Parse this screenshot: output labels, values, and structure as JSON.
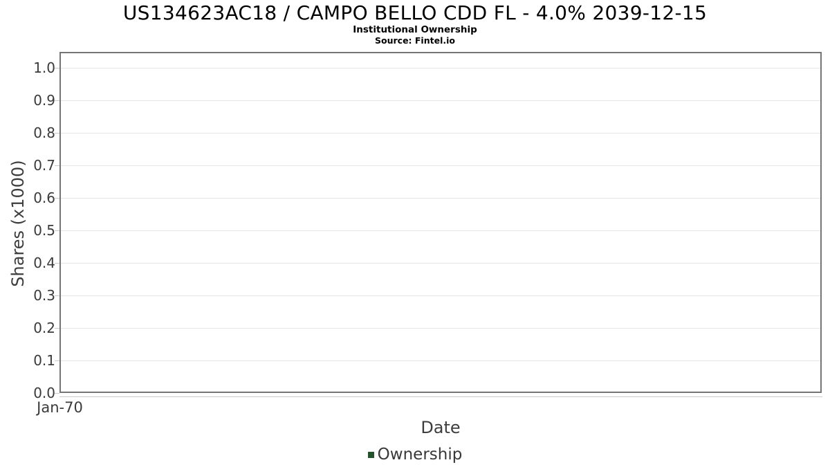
{
  "chart": {
    "title": "US134623AC18 / CAMPO BELLO CDD FL - 4.0% 2039-12-15",
    "subtitle": "Institutional Ownership",
    "source": "Source: Fintel.io",
    "xlabel": "Date",
    "ylabel": "Shares (x1000)",
    "legend_label": "Ownership",
    "colors": {
      "legend_swatch": "#24522b",
      "plot_border": "#757575",
      "gridline": "#e5e5e5",
      "axis_line": "#c9c9c9",
      "tick_text": "#3a3a3a",
      "axis_title_text": "#3d3d3d",
      "title_text": "#000000"
    }
  },
  "chart_data": {
    "type": "line",
    "title": "US134623AC18 / CAMPO BELLO CDD FL - 4.0% 2039-12-15",
    "subtitle": "Institutional Ownership",
    "source": "Source: Fintel.io",
    "xlabel": "Date",
    "ylabel": "Shares (x1000)",
    "x_ticks": [
      "Jan-70"
    ],
    "y_ticks": [
      0.0,
      0.1,
      0.2,
      0.3,
      0.4,
      0.5,
      0.6,
      0.7,
      0.8,
      0.9,
      1.0
    ],
    "y_tick_labels": [
      "0.0",
      "0.1",
      "0.2",
      "0.3",
      "0.4",
      "0.5",
      "0.6",
      "0.7",
      "0.8",
      "0.9",
      "1.0"
    ],
    "ylim": [
      0.0,
      1.05
    ],
    "grid": true,
    "legend_position": "bottom-center",
    "legend": [
      {
        "name": "Ownership",
        "color": "#24522b"
      }
    ],
    "series": [
      {
        "name": "Ownership",
        "x": [],
        "y": []
      }
    ],
    "note": "Empty chart: no data points are plotted; only axes, gridlines and legend are shown."
  }
}
